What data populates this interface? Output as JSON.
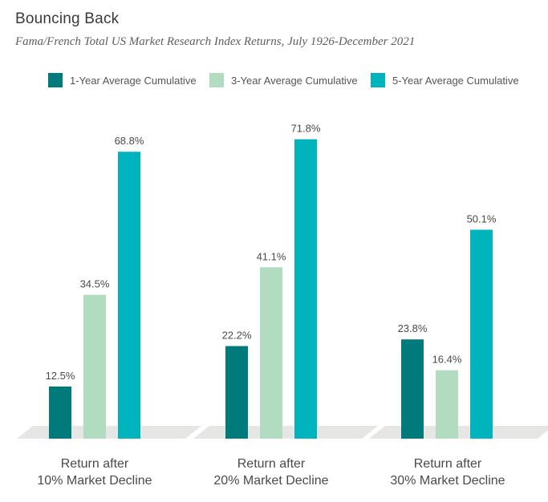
{
  "title": "Bouncing Back",
  "subtitle": "Fama/French Total US Market Research Index Returns, July 1926-December 2021",
  "legend": [
    {
      "label": "1-Year Average Cumulative",
      "color": "#007a7a"
    },
    {
      "label": "3-Year Average Cumulative",
      "color": "#b2dcbf"
    },
    {
      "label": "5-Year Average Cumulative",
      "color": "#00b4be"
    }
  ],
  "chart_data": {
    "type": "bar",
    "title": "Bouncing Back",
    "subtitle": "Fama/French Total US Market Research Index Returns, July 1926-December 2021",
    "categories": [
      [
        "Return after",
        "10% Market Decline"
      ],
      [
        "Return after",
        "20% Market Decline"
      ],
      [
        "Return after",
        "30% Market Decline"
      ]
    ],
    "series": [
      {
        "name": "1-Year Average Cumulative",
        "color": "#007a7a",
        "values": [
          12.5,
          22.2,
          23.8
        ],
        "labels": [
          "12.5%",
          "22.2%",
          "23.8%"
        ]
      },
      {
        "name": "3-Year Average Cumulative",
        "color": "#b2dcbf",
        "values": [
          34.5,
          41.1,
          16.4
        ],
        "labels": [
          "34.5%",
          "41.1%",
          "16.4%"
        ]
      },
      {
        "name": "5-Year Average Cumulative",
        "color": "#00b4be",
        "values": [
          68.8,
          71.8,
          50.1
        ],
        "labels": [
          "68.8%",
          "71.8%",
          "50.1%"
        ]
      }
    ],
    "floor_color": "#e6e6e4",
    "ylim": [
      0,
      80
    ],
    "grid": false,
    "legend_position": "top"
  }
}
